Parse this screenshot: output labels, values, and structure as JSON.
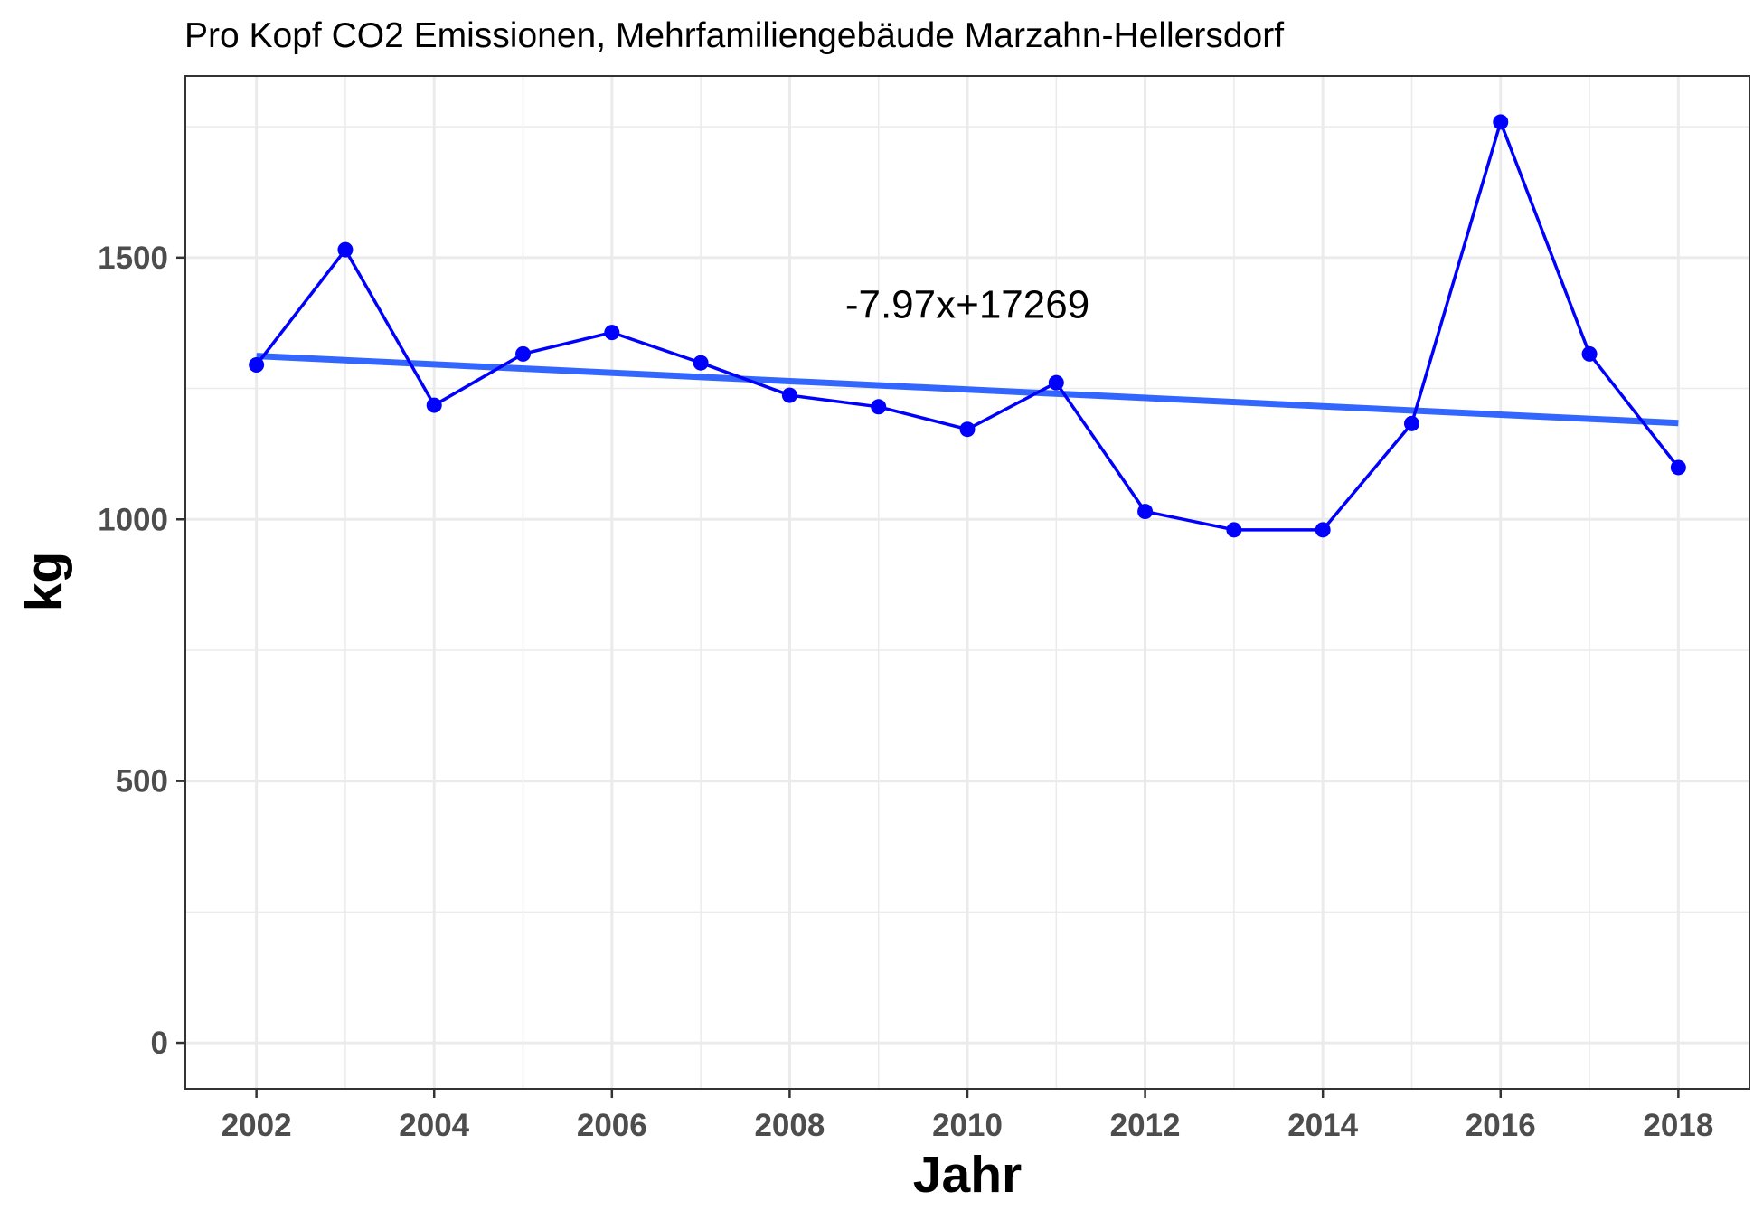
{
  "chart_data": {
    "type": "line",
    "title": "Pro Kopf CO2 Emissionen, Mehrfamiliengebäude Marzahn-Hellersdorf",
    "xlabel": "Jahr",
    "ylabel": "kg",
    "x": [
      2002,
      2003,
      2004,
      2005,
      2006,
      2007,
      2008,
      2009,
      2010,
      2011,
      2012,
      2013,
      2014,
      2015,
      2016,
      2017,
      2018
    ],
    "series": [
      {
        "values": [
          1295,
          1515,
          1218,
          1316,
          1357,
          1299,
          1237,
          1215,
          1172,
          1261,
          1015,
          980,
          980,
          1183,
          1759,
          1316,
          1099
        ],
        "color": "#0000ff"
      }
    ],
    "trend": {
      "slope": -7.97,
      "intercept": 17269,
      "start": [
        2002,
        1312
      ],
      "end": [
        2018,
        1184
      ],
      "color": "#3366ff"
    },
    "annotation": {
      "text": "-7.97x+17269",
      "x": 2010,
      "y": 1385
    },
    "xlim": [
      2001.2,
      2018.8
    ],
    "ylim": [
      -88,
      1847
    ],
    "xticks": [
      2002,
      2004,
      2006,
      2008,
      2010,
      2012,
      2014,
      2016,
      2018
    ],
    "xtick_labels": [
      "2002",
      "2004",
      "2006",
      "2008",
      "2010",
      "2012",
      "2014",
      "2016",
      "2018"
    ],
    "xminor": [
      2003,
      2005,
      2007,
      2009,
      2011,
      2013,
      2015,
      2017
    ],
    "yticks": [
      0,
      500,
      1000,
      1500
    ],
    "ytick_labels": [
      "0",
      "500",
      "1000",
      "1500"
    ],
    "yminor": [
      250,
      750,
      1250,
      1750
    ],
    "grid": true,
    "legend": "none"
  }
}
